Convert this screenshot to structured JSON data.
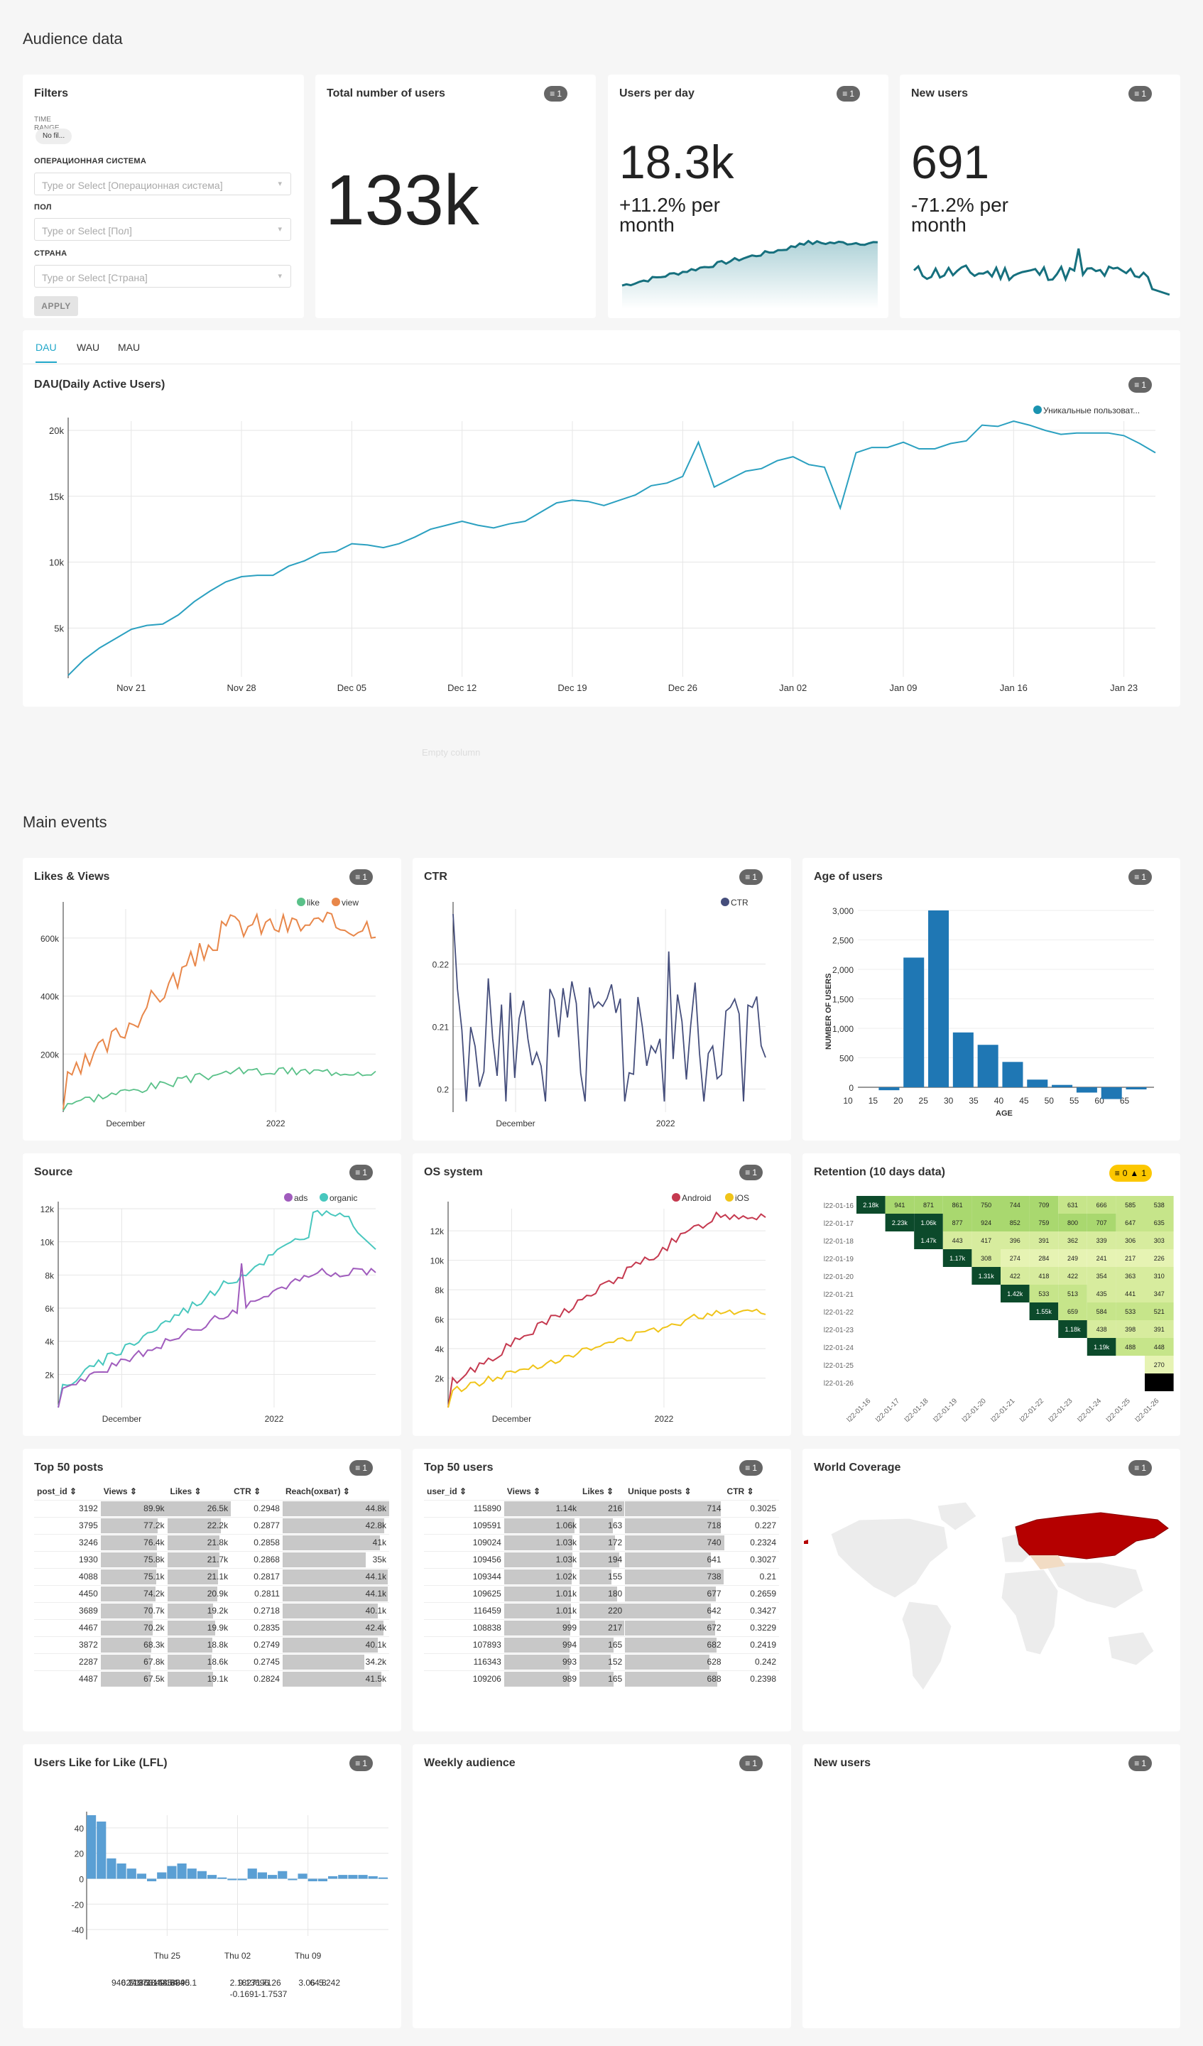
{
  "sections": {
    "audience": "Audience data",
    "main": "Main events",
    "empty_column": "Empty column"
  },
  "filters": {
    "title": "Filters",
    "time_range_label": "TIME RANGE",
    "time_range_value": "No fil...",
    "os_label": "ОПЕРАЦИОННАЯ СИСТЕМА",
    "os_placeholder": "Type or Select [Операционная система]",
    "sex_label": "ПОЛ",
    "sex_placeholder": "Type or Select [Пол]",
    "country_label": "СТРАНА",
    "country_placeholder": "Type or Select [Страна]",
    "apply": "APPLY"
  },
  "badge_count": "1",
  "kpi": {
    "total": {
      "title": "Total number of users",
      "value": "133k"
    },
    "per_day": {
      "title": "Users per day",
      "value": "18.3k",
      "change": "+11.2% per month"
    },
    "new_users": {
      "title": "New users",
      "value": "691",
      "change": "-71.2% per month"
    }
  },
  "dau_tabs": [
    "DAU",
    "WAU",
    "MAU"
  ],
  "dau_title": "DAU(Daily Active Users)",
  "colors": {
    "teal": "#1a93b0",
    "like": "#5ac189",
    "view": "#e8874a",
    "ctr": "#454e7c",
    "bar": "#1f77b4",
    "ads": "#a05cbd",
    "organic": "#48c7be",
    "android": "#c5394f",
    "ios": "#f0c419",
    "lfl": "#5a9fd4"
  },
  "chart_data": [
    {
      "type": "line",
      "title": "DAU(Daily Active Users)",
      "legend": [
        "Уникальные пользоват..."
      ],
      "x_ticks": [
        "Nov 21",
        "Nov 28",
        "Dec 05",
        "Dec 12",
        "Dec 19",
        "Dec 26",
        "Jan 02",
        "Jan 09",
        "Jan 16",
        "Jan 23"
      ],
      "y_ticks": [
        "5k",
        "10k",
        "15k",
        "20k"
      ],
      "ylim": [
        1300,
        20700
      ],
      "values": [
        1400,
        2600,
        3500,
        4200,
        4900,
        5200,
        5300,
        6000,
        7000,
        7800,
        8500,
        8900,
        9000,
        9000,
        9700,
        10100,
        10700,
        10800,
        11400,
        11300,
        11100,
        11400,
        11900,
        12500,
        12800,
        13100,
        12800,
        12600,
        12900,
        13100,
        13800,
        14500,
        14700,
        14600,
        14300,
        14700,
        15100,
        15800,
        16000,
        16500,
        19100,
        15700,
        16300,
        16900,
        17100,
        17700,
        18000,
        17400,
        17200,
        14100,
        18300,
        18700,
        18700,
        19100,
        18600,
        18600,
        19000,
        19200,
        20400,
        20300,
        20700,
        20400,
        20000,
        19700,
        19800,
        19800,
        19800,
        19600,
        19000,
        18300
      ]
    },
    {
      "type": "line",
      "title": "Likes & Views",
      "series": [
        {
          "name": "like"
        },
        {
          "name": "view"
        }
      ],
      "x_ticks": [
        "December",
        "2022"
      ],
      "y_ticks": [
        "200k",
        "400k",
        "600k"
      ],
      "ylim": [
        0,
        700000
      ]
    },
    {
      "type": "line",
      "title": "CTR",
      "series": [
        {
          "name": "CTR"
        }
      ],
      "x_ticks": [
        "December",
        "2022"
      ],
      "y_ticks": [
        "0.2",
        "0.21",
        "0.22"
      ]
    },
    {
      "type": "bar",
      "title": "Age of users",
      "xlabel": "AGE",
      "ylabel": "NUMBER OF USERS",
      "x_ticks": [
        "10",
        "15",
        "20",
        "25",
        "30",
        "35",
        "40",
        "45",
        "50",
        "55",
        "60",
        "65"
      ],
      "y_ticks": [
        "0",
        "500",
        "1,000",
        "1,500",
        "2,000",
        "2,500",
        "3,000"
      ],
      "categories": [
        "15-20",
        "20-25",
        "25-30",
        "30-35",
        "35-40",
        "40-45",
        "45-50",
        "50-55",
        "55-60",
        "60-65",
        "65+"
      ],
      "values": [
        -50,
        2200,
        3000,
        930,
        720,
        430,
        130,
        40,
        -90,
        -200,
        -30
      ]
    },
    {
      "type": "line",
      "title": "Source",
      "series": [
        {
          "name": "ads"
        },
        {
          "name": "organic"
        }
      ],
      "x_ticks": [
        "December",
        "2022"
      ],
      "y_ticks": [
        "2k",
        "4k",
        "6k",
        "8k",
        "10k",
        "12k"
      ]
    },
    {
      "type": "line",
      "title": "OS system",
      "series": [
        {
          "name": "Android"
        },
        {
          "name": "iOS"
        }
      ],
      "x_ticks": [
        "December",
        "2022"
      ],
      "y_ticks": [
        "2k",
        "4k",
        "6k",
        "8k",
        "10k",
        "12k"
      ]
    },
    {
      "type": "heatmap",
      "title": "Retention (10 days data)",
      "warnings": "0",
      "errors": "1",
      "rows": [
        "2022-01-16",
        "2022-01-17",
        "2022-01-18",
        "2022-01-19",
        "2022-01-20",
        "2022-01-21",
        "2022-01-22",
        "2022-01-23",
        "2022-01-24",
        "2022-01-25",
        "2022-01-26"
      ],
      "row_labels": [
        "l22-01-16",
        "l22-01-17",
        "l22-01-18",
        "l22-01-19",
        "l22-01-20",
        "l22-01-21",
        "l22-01-22",
        "l22-01-23",
        "l22-01-24",
        "l22-01-25",
        "l22-01-26"
      ],
      "col_labels": [
        "l22-01-16",
        "l22-01-17",
        "l22-01-18",
        "l22-01-19",
        "l22-01-20",
        "l22-01-21",
        "l22-01-22",
        "l22-01-23",
        "l22-01-24",
        "l22-01-25",
        "l22-01-26"
      ],
      "cells": [
        [
          "2.18k",
          "941",
          "871",
          "861",
          "750",
          "744",
          "709",
          "631",
          "666",
          "585",
          "538"
        ],
        [
          "",
          "2.23k",
          "1.06k",
          "877",
          "924",
          "852",
          "759",
          "800",
          "707",
          "647",
          "635"
        ],
        [
          "",
          "",
          "1.47k",
          "443",
          "417",
          "396",
          "391",
          "362",
          "339",
          "306",
          "303"
        ],
        [
          "",
          "",
          "",
          "1.17k",
          "308",
          "274",
          "284",
          "249",
          "241",
          "217",
          "226"
        ],
        [
          "",
          "",
          "",
          "",
          "1.31k",
          "422",
          "418",
          "422",
          "354",
          "363",
          "310"
        ],
        [
          "",
          "",
          "",
          "",
          "",
          "1.42k",
          "533",
          "513",
          "435",
          "441",
          "347"
        ],
        [
          "",
          "",
          "",
          "",
          "",
          "",
          "1.55k",
          "659",
          "584",
          "533",
          "521"
        ],
        [
          "",
          "",
          "",
          "",
          "",
          "",
          "",
          "1.18k",
          "438",
          "398",
          "391"
        ],
        [
          "",
          "",
          "",
          "",
          "",
          "",
          "",
          "",
          "1.19k",
          "488",
          "448"
        ],
        [
          "",
          "",
          "",
          "",
          "",
          "",
          "",
          "",
          "",
          "",
          "270"
        ],
        [
          "",
          "",
          "",
          "",
          "",
          "",
          "",
          "",
          "",
          "",
          ""
        ]
      ]
    },
    {
      "type": "bar",
      "title": "Users Like for Like (LFL)",
      "x_ticks": [
        "Thu 25",
        "Thu 02",
        "Thu 09"
      ],
      "y_ticks": [
        "-40",
        "-20",
        "0",
        "20",
        "40"
      ],
      "values": [
        50,
        45,
        16,
        12,
        8,
        4,
        -2,
        5,
        10,
        12,
        8,
        6,
        3,
        1,
        -1,
        -1,
        8,
        5,
        3,
        6,
        0,
        4,
        -2,
        -2,
        2,
        3,
        3,
        3,
        2,
        1
      ],
      "annotations": [
        "940.1",
        "6271",
        "2197",
        "4.8631",
        "8.1849",
        "3.1685",
        "44.8",
        "1.4",
        "8695",
        "940.1",
        "2.1",
        "9.1",
        "8271",
        "36.7",
        "9.1",
        "6.26",
        "-0.1691",
        "-1.7537",
        "3.06",
        "64.8",
        "5.242"
      ]
    }
  ],
  "top_posts": {
    "title": "Top 50 posts",
    "columns": [
      "post_id",
      "Views",
      "Likes",
      "CTR",
      "Reach(охват)"
    ],
    "rows": [
      [
        "3192",
        "89.9k",
        "26.5k",
        "0.2948",
        "44.8k"
      ],
      [
        "3795",
        "77.2k",
        "22.2k",
        "0.2877",
        "42.8k"
      ],
      [
        "3246",
        "76.4k",
        "21.8k",
        "0.2858",
        "41k"
      ],
      [
        "1930",
        "75.8k",
        "21.7k",
        "0.2868",
        "35k"
      ],
      [
        "4088",
        "75.1k",
        "21.1k",
        "0.2817",
        "44.1k"
      ],
      [
        "4450",
        "74.2k",
        "20.9k",
        "0.2811",
        "44.1k"
      ],
      [
        "3689",
        "70.7k",
        "19.2k",
        "0.2718",
        "40.1k"
      ],
      [
        "4467",
        "70.2k",
        "19.9k",
        "0.2835",
        "42.4k"
      ],
      [
        "3872",
        "68.3k",
        "18.8k",
        "0.2749",
        "40.1k"
      ],
      [
        "2287",
        "67.8k",
        "18.6k",
        "0.2745",
        "34.2k"
      ],
      [
        "4487",
        "67.5k",
        "19.1k",
        "0.2824",
        "41.5k"
      ]
    ],
    "fill": [
      [
        1.0,
        1.0,
        1.0
      ],
      [
        0.86,
        0.84,
        0.955
      ],
      [
        0.85,
        0.82,
        0.915
      ],
      [
        0.843,
        0.82,
        0.78
      ],
      [
        0.835,
        0.796,
        0.985
      ],
      [
        0.826,
        0.79,
        0.985
      ],
      [
        0.786,
        0.725,
        0.895
      ],
      [
        0.78,
        0.75,
        0.946
      ],
      [
        0.76,
        0.71,
        0.895
      ],
      [
        0.754,
        0.7,
        0.764
      ],
      [
        0.75,
        0.72,
        0.926
      ]
    ]
  },
  "top_users": {
    "title": "Top 50 users",
    "columns": [
      "user_id",
      "Views",
      "Likes",
      "Unique posts",
      "CTR"
    ],
    "rows": [
      [
        "115890",
        "1.14k",
        "216",
        "714",
        "0.3025"
      ],
      [
        "109591",
        "1.06k",
        "163",
        "718",
        "0.227"
      ],
      [
        "109024",
        "1.03k",
        "172",
        "740",
        "0.2324"
      ],
      [
        "109456",
        "1.03k",
        "194",
        "641",
        "0.3027"
      ],
      [
        "109344",
        "1.02k",
        "155",
        "738",
        "0.21"
      ],
      [
        "109625",
        "1.01k",
        "180",
        "677",
        "0.2659"
      ],
      [
        "116459",
        "1.01k",
        "220",
        "642",
        "0.3427"
      ],
      [
        "108838",
        "999",
        "217",
        "672",
        "0.3229"
      ],
      [
        "107893",
        "994",
        "165",
        "682",
        "0.2419"
      ],
      [
        "116343",
        "993",
        "152",
        "628",
        "0.242"
      ],
      [
        "109206",
        "989",
        "165",
        "688",
        "0.2398"
      ]
    ],
    "fill": [
      [
        1.0,
        0.98,
        0.965
      ],
      [
        0.93,
        0.74,
        0.97
      ],
      [
        0.905,
        0.78,
        1.0
      ],
      [
        0.905,
        0.88,
        0.866
      ],
      [
        0.895,
        0.7,
        0.997
      ],
      [
        0.886,
        0.82,
        0.915
      ],
      [
        0.886,
        1.0,
        0.868
      ],
      [
        0.876,
        0.986,
        0.908
      ],
      [
        0.872,
        0.75,
        0.922
      ],
      [
        0.871,
        0.69,
        0.849
      ],
      [
        0.868,
        0.75,
        0.93
      ]
    ]
  },
  "world": {
    "title": "World Coverage"
  },
  "weekly": {
    "title": "Weekly audience"
  },
  "new_users_card": {
    "title": "New users"
  }
}
